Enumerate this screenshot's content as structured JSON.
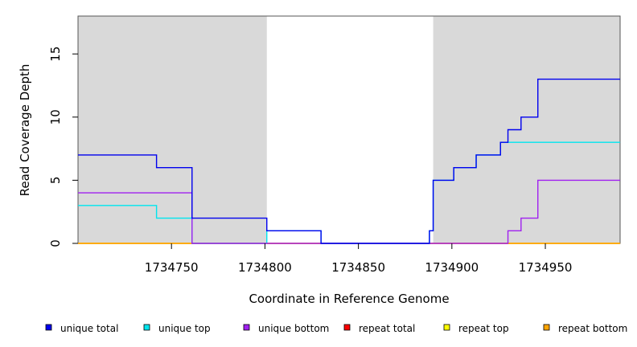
{
  "chart_data": {
    "type": "line",
    "step": true,
    "xlabel": "Coordinate in Reference Genome",
    "ylabel": "Read Coverage Depth",
    "xlim": [
      1734700,
      1734990
    ],
    "ylim": [
      0,
      18
    ],
    "xticks": [
      1734750,
      1734800,
      1734850,
      1734900,
      1734950
    ],
    "yticks": [
      0,
      5,
      10,
      15
    ],
    "shaded_regions": [
      [
        1734700,
        1734801
      ],
      [
        1734890,
        1734990
      ]
    ],
    "shade_color": "#d9d9d9",
    "series": [
      {
        "name": "repeat total",
        "color": "#ff0000",
        "x": [
          1734700,
          1734990
        ],
        "y": [
          0,
          0
        ]
      },
      {
        "name": "repeat top",
        "color": "#ffff00",
        "x": [
          1734700,
          1734990
        ],
        "y": [
          0,
          0
        ]
      },
      {
        "name": "repeat bottom",
        "color": "#ffa500",
        "x": [
          1734700,
          1734990
        ],
        "y": [
          0,
          0
        ]
      },
      {
        "name": "unique top",
        "color": "#00e5ee",
        "x": [
          1734700,
          1734742,
          1734761,
          1734801,
          1734830,
          1734888,
          1734890,
          1734901,
          1734913,
          1734926,
          1734930,
          1734990
        ],
        "y": [
          3,
          2,
          0,
          1,
          0,
          1,
          5,
          6,
          7,
          8,
          8,
          8
        ]
      },
      {
        "name": "unique bottom",
        "color": "#a020f0",
        "x": [
          1734700,
          1734761,
          1734801,
          1734830,
          1734930,
          1734937,
          1734946,
          1734990
        ],
        "y": [
          4,
          0,
          0,
          0,
          1,
          2,
          5,
          5
        ]
      },
      {
        "name": "unique total",
        "color": "#0000ee",
        "x": [
          1734700,
          1734742,
          1734761,
          1734801,
          1734830,
          1734888,
          1734890,
          1734901,
          1734913,
          1734926,
          1734930,
          1734937,
          1734946,
          1734990
        ],
        "y": [
          7,
          6,
          2,
          1,
          0,
          1,
          5,
          6,
          7,
          8,
          9,
          10,
          13,
          13
        ]
      }
    ]
  },
  "legend": [
    {
      "label": "unique total",
      "color": "#0000ee"
    },
    {
      "label": "unique top",
      "color": "#00e5ee"
    },
    {
      "label": "unique bottom",
      "color": "#a020f0"
    },
    {
      "label": "repeat total",
      "color": "#ff0000"
    },
    {
      "label": "repeat top",
      "color": "#ffff00"
    },
    {
      "label": "repeat bottom",
      "color": "#ffa500"
    }
  ]
}
